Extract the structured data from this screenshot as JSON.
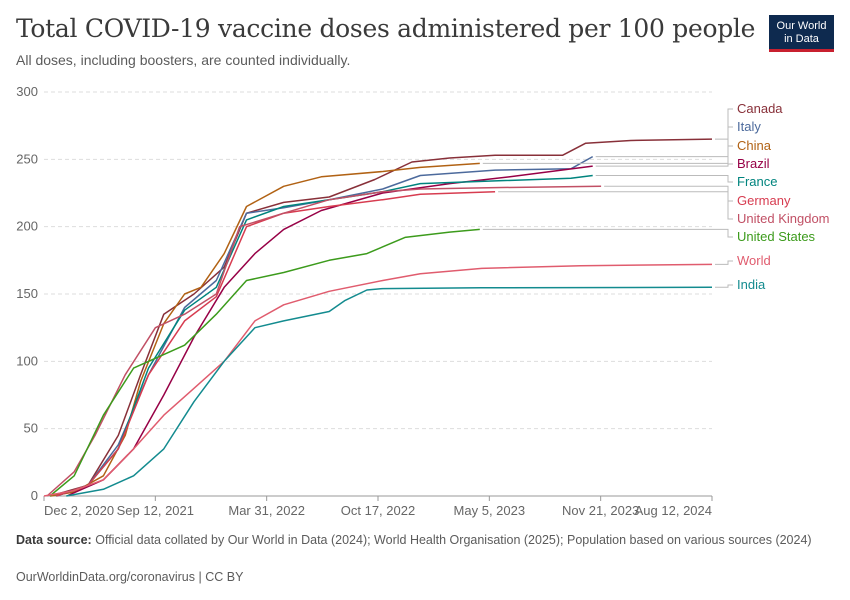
{
  "header": {
    "title": "Total COVID-19 vaccine doses administered per 100 people",
    "subtitle": "All doses, including boosters, are counted individually.",
    "logo_line1": "Our World",
    "logo_line2": "in Data"
  },
  "footer": {
    "source_label": "Data source:",
    "source_text": "Official data collated by Our World in Data (2024); World Health Organisation (2025); Population based on various sources (2024)",
    "credit": "OurWorldinData.org/coronavirus | CC BY"
  },
  "colors": {
    "accent": "#c8202f",
    "brand": "#0e2a4f"
  },
  "chart_data": {
    "type": "line",
    "xlabel": "",
    "ylabel": "",
    "x_ticks": [
      "Dec 2, 2020",
      "Sep 12, 2021",
      "Mar 31, 2022",
      "Oct 17, 2022",
      "May 5, 2023",
      "Nov 21, 2023",
      "Aug 12, 2024"
    ],
    "x_range": [
      "2020-12-02",
      "2024-08-12"
    ],
    "ylim": [
      0,
      300
    ],
    "y_ticks": [
      0,
      50,
      100,
      150,
      200,
      250,
      300
    ],
    "grid": "horizontal dashed",
    "legend": "right, line-end labels",
    "series": [
      {
        "name": "Canada",
        "color": "#883039",
        "points": [
          [
            "2020-12-15",
            0
          ],
          [
            "2021-03-01",
            8
          ],
          [
            "2021-05-01",
            45
          ],
          [
            "2021-06-15",
            90
          ],
          [
            "2021-08-01",
            135
          ],
          [
            "2021-10-01",
            150
          ],
          [
            "2021-12-01",
            170
          ],
          [
            "2022-01-15",
            210
          ],
          [
            "2022-03-31",
            218
          ],
          [
            "2022-07-01",
            222
          ],
          [
            "2022-10-01",
            235
          ],
          [
            "2022-12-15",
            248
          ],
          [
            "2023-03-01",
            251
          ],
          [
            "2023-06-01",
            253
          ],
          [
            "2023-10-15",
            253
          ],
          [
            "2023-12-01",
            262
          ],
          [
            "2024-03-01",
            264
          ],
          [
            "2024-08-12",
            265
          ]
        ]
      },
      {
        "name": "Italy",
        "color": "#4c6a9c",
        "points": [
          [
            "2020-12-27",
            0
          ],
          [
            "2021-03-01",
            8
          ],
          [
            "2021-05-01",
            38
          ],
          [
            "2021-07-01",
            90
          ],
          [
            "2021-09-12",
            140
          ],
          [
            "2021-11-15",
            160
          ],
          [
            "2022-01-15",
            210
          ],
          [
            "2022-03-31",
            214
          ],
          [
            "2022-07-01",
            220
          ],
          [
            "2022-10-17",
            228
          ],
          [
            "2023-01-01",
            238
          ],
          [
            "2023-06-01",
            242
          ],
          [
            "2023-11-01",
            243
          ],
          [
            "2023-12-15",
            252
          ]
        ]
      },
      {
        "name": "China",
        "color": "#b16214",
        "points": [
          [
            "2020-12-15",
            0
          ],
          [
            "2021-02-01",
            3
          ],
          [
            "2021-04-01",
            15
          ],
          [
            "2021-05-15",
            45
          ],
          [
            "2021-06-15",
            85
          ],
          [
            "2021-08-01",
            128
          ],
          [
            "2021-09-12",
            150
          ],
          [
            "2021-10-15",
            155
          ],
          [
            "2021-12-01",
            180
          ],
          [
            "2022-01-15",
            215
          ],
          [
            "2022-03-31",
            230
          ],
          [
            "2022-06-15",
            237
          ],
          [
            "2022-10-17",
            241
          ],
          [
            "2023-01-01",
            244
          ],
          [
            "2023-05-01",
            247
          ]
        ]
      },
      {
        "name": "Brazil",
        "color": "#970046",
        "points": [
          [
            "2021-01-17",
            0
          ],
          [
            "2021-04-01",
            12
          ],
          [
            "2021-06-01",
            35
          ],
          [
            "2021-08-01",
            75
          ],
          [
            "2021-10-01",
            118
          ],
          [
            "2021-12-01",
            155
          ],
          [
            "2022-02-01",
            180
          ],
          [
            "2022-03-31",
            198
          ],
          [
            "2022-06-15",
            212
          ],
          [
            "2022-10-17",
            225
          ],
          [
            "2023-03-01",
            232
          ],
          [
            "2023-07-01",
            237
          ],
          [
            "2023-12-15",
            245
          ]
        ]
      },
      {
        "name": "France",
        "color": "#00847e",
        "points": [
          [
            "2020-12-27",
            0
          ],
          [
            "2021-03-01",
            8
          ],
          [
            "2021-05-01",
            35
          ],
          [
            "2021-07-01",
            95
          ],
          [
            "2021-09-12",
            138
          ],
          [
            "2021-11-15",
            155
          ],
          [
            "2022-01-15",
            205
          ],
          [
            "2022-03-31",
            215
          ],
          [
            "2022-07-01",
            220
          ],
          [
            "2022-10-17",
            226
          ],
          [
            "2023-01-01",
            232
          ],
          [
            "2023-06-01",
            234
          ],
          [
            "2023-11-01",
            236
          ],
          [
            "2023-12-15",
            238
          ]
        ]
      },
      {
        "name": "Germany",
        "color": "#d73c50",
        "points": [
          [
            "2020-12-27",
            0
          ],
          [
            "2021-03-01",
            8
          ],
          [
            "2021-05-01",
            35
          ],
          [
            "2021-07-01",
            90
          ],
          [
            "2021-09-12",
            130
          ],
          [
            "2021-11-15",
            148
          ],
          [
            "2022-01-15",
            200
          ],
          [
            "2022-03-31",
            210
          ],
          [
            "2022-07-01",
            215
          ],
          [
            "2022-10-17",
            220
          ],
          [
            "2023-01-01",
            224
          ],
          [
            "2023-06-01",
            226
          ]
        ]
      },
      {
        "name": "United Kingdom",
        "color": "#c15065",
        "points": [
          [
            "2020-12-08",
            0
          ],
          [
            "2021-02-01",
            18
          ],
          [
            "2021-03-15",
            45
          ],
          [
            "2021-05-15",
            90
          ],
          [
            "2021-07-15",
            125
          ],
          [
            "2021-09-12",
            135
          ],
          [
            "2021-11-15",
            150
          ],
          [
            "2022-01-01",
            200
          ],
          [
            "2022-03-31",
            210
          ],
          [
            "2022-07-01",
            220
          ],
          [
            "2022-10-17",
            226
          ],
          [
            "2023-01-01",
            228
          ],
          [
            "2023-06-01",
            229
          ],
          [
            "2024-01-01",
            230
          ]
        ]
      },
      {
        "name": "United States",
        "color": "#3c9b1c",
        "points": [
          [
            "2020-12-14",
            0
          ],
          [
            "2021-02-01",
            15
          ],
          [
            "2021-04-01",
            60
          ],
          [
            "2021-06-01",
            95
          ],
          [
            "2021-09-12",
            112
          ],
          [
            "2021-11-15",
            135
          ],
          [
            "2022-01-15",
            160
          ],
          [
            "2022-03-31",
            166
          ],
          [
            "2022-07-01",
            175
          ],
          [
            "2022-09-15",
            180
          ],
          [
            "2022-12-01",
            192
          ],
          [
            "2023-03-01",
            196
          ],
          [
            "2023-05-01",
            198
          ]
        ]
      },
      {
        "name": "World",
        "color": "#e05c6e",
        "points": [
          [
            "2020-12-02",
            0
          ],
          [
            "2021-02-01",
            4
          ],
          [
            "2021-04-01",
            12
          ],
          [
            "2021-06-01",
            35
          ],
          [
            "2021-08-01",
            60
          ],
          [
            "2021-10-01",
            80
          ],
          [
            "2021-12-01",
            100
          ],
          [
            "2022-02-01",
            130
          ],
          [
            "2022-03-31",
            142
          ],
          [
            "2022-07-01",
            152
          ],
          [
            "2022-10-17",
            160
          ],
          [
            "2023-01-01",
            165
          ],
          [
            "2023-05-05",
            169
          ],
          [
            "2023-11-21",
            171
          ],
          [
            "2024-08-12",
            172
          ]
        ]
      },
      {
        "name": "India",
        "color": "#138b8f",
        "points": [
          [
            "2021-01-16",
            0
          ],
          [
            "2021-04-01",
            5
          ],
          [
            "2021-06-01",
            15
          ],
          [
            "2021-08-01",
            35
          ],
          [
            "2021-10-01",
            70
          ],
          [
            "2021-12-01",
            100
          ],
          [
            "2022-02-01",
            125
          ],
          [
            "2022-03-31",
            130
          ],
          [
            "2022-07-01",
            137
          ],
          [
            "2022-08-01",
            145
          ],
          [
            "2022-09-15",
            153
          ],
          [
            "2022-10-17",
            154
          ],
          [
            "2023-05-05",
            154.6
          ],
          [
            "2024-08-12",
            155
          ]
        ]
      }
    ]
  }
}
